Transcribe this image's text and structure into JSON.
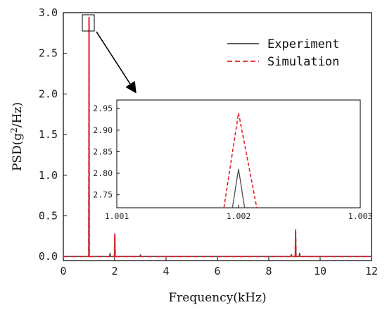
{
  "chart_data": {
    "type": "line",
    "xlabel": "Frequency(kHz)",
    "ylabel_prefix": "PSD(g",
    "ylabel_sup": "2",
    "ylabel_suffix": "/Hz)",
    "xlim": [
      0,
      12
    ],
    "ylim": [
      -0.05,
      3.0
    ],
    "xticks": [
      "0",
      "2",
      "4",
      "6",
      "8",
      "10",
      "12"
    ],
    "yticks": [
      "0.0",
      "0.5",
      "1.0",
      "1.5",
      "2.0",
      "2.5",
      "3.0"
    ],
    "legend_position": "top-right",
    "series": [
      {
        "name": "Experiment",
        "color": "#4d4d4d",
        "style": "solid",
        "x": [
          0,
          0.98,
          0.99,
          1.002,
          1.01,
          1.02,
          1.8,
          1.82,
          1.84,
          1.98,
          1.99,
          2.004,
          2.02,
          2.98,
          3.0,
          3.02,
          8.85,
          8.88,
          8.91,
          9.02,
          9.03,
          9.045,
          9.06,
          9.18,
          9.2,
          9.22,
          12
        ],
        "y": [
          0,
          0,
          0,
          2.81,
          0,
          0,
          0,
          0.04,
          0,
          0,
          0,
          0.28,
          0,
          0,
          0.02,
          0,
          0,
          0.025,
          0,
          0,
          0,
          0.33,
          0,
          0,
          0.04,
          0,
          0
        ]
      },
      {
        "name": "Simulation",
        "color": "#e8202a",
        "style": "dashed",
        "x": [
          0,
          0.98,
          0.99,
          1.002,
          1.01,
          1.02,
          1.98,
          1.99,
          2.004,
          2.02,
          9.02,
          9.03,
          9.045,
          9.06,
          12
        ],
        "y": [
          0,
          0,
          0,
          2.94,
          0,
          0,
          0,
          0,
          0.27,
          0,
          0,
          0,
          0.3,
          0,
          0
        ]
      }
    ],
    "inset": {
      "xlim": [
        1.001,
        1.003
      ],
      "ylim": [
        2.72,
        2.97
      ],
      "xticks": [
        "1.001",
        "1.002",
        "1.003"
      ],
      "xtick_values": [
        1.001,
        1.002,
        1.003
      ],
      "yticks": [
        "2.75",
        "2.80",
        "2.85",
        "2.90",
        "2.95"
      ],
      "ytick_values": [
        2.75,
        2.8,
        2.85,
        2.9,
        2.95
      ],
      "series": [
        {
          "name": "Experiment",
          "x": [
            1.00195,
            1.002,
            1.00205
          ],
          "y": [
            2.72,
            2.81,
            2.72
          ]
        },
        {
          "name": "Simulation",
          "x": [
            1.00188,
            1.002,
            1.00215
          ],
          "y": [
            2.72,
            2.94,
            2.72
          ]
        }
      ]
    }
  }
}
